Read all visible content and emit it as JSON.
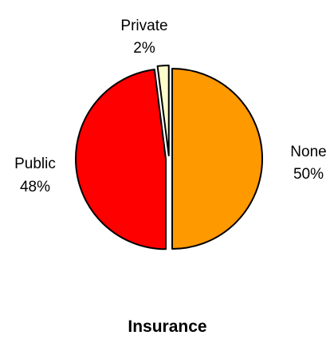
{
  "chart_data": {
    "type": "pie",
    "title": "Insurance",
    "slices": [
      {
        "label": "None",
        "percent_label": "50%",
        "value": 50,
        "color": "#FF9900"
      },
      {
        "label": "Public",
        "percent_label": "48%",
        "value": 48,
        "color": "#FF0000"
      },
      {
        "label": "Private",
        "percent_label": "2%",
        "value": 2,
        "color": "#FFFFCC"
      }
    ],
    "exploded": true,
    "legend": "none"
  }
}
